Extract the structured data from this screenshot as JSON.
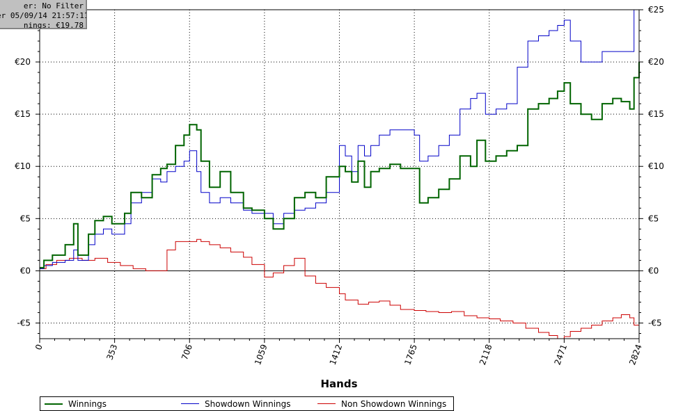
{
  "info_box": {
    "line1": "er: No Filter",
    "line2": "er 05/09/14 21:57:11",
    "line3": "nings: €19.78"
  },
  "colors": {
    "winnings": "#006400",
    "showdown": "#0000c8",
    "non_showdown": "#cc0000",
    "zero_line": "#000000",
    "grid": "#000000"
  },
  "chart_data": {
    "type": "line",
    "xlabel": "Hands",
    "ylabel": "",
    "xlim": [
      0,
      2824
    ],
    "ylim": [
      -6.5,
      25
    ],
    "x_ticks": [
      0,
      353,
      706,
      1059,
      1412,
      1765,
      2118,
      2471,
      2824
    ],
    "y_ticks": [
      -5,
      0,
      5,
      10,
      15,
      20,
      25
    ],
    "y_tick_labels": [
      "-€5",
      "€0",
      "€5",
      "€10",
      "€15",
      "€20",
      "€25"
    ],
    "grid": true,
    "legend_position": "bottom",
    "series": [
      {
        "name": "Winnings",
        "x": [
          0,
          20,
          60,
          120,
          160,
          180,
          230,
          260,
          300,
          340,
          400,
          430,
          480,
          530,
          570,
          600,
          640,
          680,
          706,
          740,
          760,
          800,
          850,
          900,
          960,
          1000,
          1059,
          1100,
          1150,
          1200,
          1250,
          1300,
          1350,
          1412,
          1440,
          1470,
          1500,
          1530,
          1560,
          1600,
          1650,
          1700,
          1765,
          1790,
          1830,
          1880,
          1930,
          1980,
          2030,
          2060,
          2100,
          2150,
          2200,
          2250,
          2300,
          2350,
          2400,
          2440,
          2471,
          2500,
          2550,
          2600,
          2650,
          2700,
          2740,
          2780,
          2800,
          2824
        ],
        "y": [
          0.3,
          1.0,
          1.5,
          2.5,
          4.5,
          1.5,
          3.5,
          4.8,
          5.2,
          4.5,
          5.5,
          7.5,
          7.0,
          9.2,
          9.8,
          10.2,
          12.0,
          13.0,
          14.0,
          13.5,
          10.5,
          8.0,
          9.5,
          7.5,
          6.0,
          5.8,
          5.0,
          4.0,
          5.0,
          7.0,
          7.5,
          7.0,
          9.0,
          10.0,
          9.5,
          8.5,
          10.5,
          8.0,
          9.5,
          9.8,
          10.2,
          9.8,
          9.8,
          6.5,
          7.0,
          7.8,
          8.8,
          11.0,
          10.0,
          12.5,
          10.5,
          11.0,
          11.5,
          12.0,
          15.5,
          16.0,
          16.5,
          17.2,
          18.0,
          16.0,
          15.0,
          14.5,
          16.0,
          16.5,
          16.2,
          15.5,
          18.5,
          20.0
        ]
      },
      {
        "name": "Showdown Winnings",
        "x": [
          0,
          20,
          60,
          120,
          160,
          180,
          230,
          260,
          300,
          340,
          400,
          430,
          480,
          530,
          570,
          600,
          640,
          680,
          706,
          740,
          760,
          800,
          850,
          900,
          960,
          1000,
          1059,
          1100,
          1150,
          1200,
          1250,
          1300,
          1350,
          1412,
          1440,
          1470,
          1500,
          1530,
          1560,
          1600,
          1650,
          1700,
          1765,
          1790,
          1830,
          1880,
          1930,
          1980,
          2030,
          2060,
          2100,
          2150,
          2200,
          2250,
          2300,
          2350,
          2400,
          2440,
          2471,
          2500,
          2550,
          2600,
          2650,
          2700,
          2740,
          2780,
          2800,
          2824
        ],
        "y": [
          0.2,
          0.5,
          0.8,
          1.0,
          2.0,
          1.0,
          2.5,
          3.5,
          4.0,
          3.5,
          4.5,
          6.5,
          7.5,
          8.8,
          8.5,
          9.5,
          10.0,
          10.5,
          11.5,
          9.5,
          7.5,
          6.5,
          7.0,
          6.5,
          5.8,
          5.5,
          5.5,
          4.5,
          5.5,
          5.8,
          6.0,
          6.5,
          7.5,
          12.0,
          11.0,
          9.5,
          12.0,
          11.0,
          12.0,
          13.0,
          13.5,
          13.5,
          13.0,
          10.5,
          11.0,
          12.0,
          13.0,
          15.5,
          16.5,
          17.0,
          15.0,
          15.5,
          16.0,
          19.5,
          22.0,
          22.5,
          23.0,
          23.5,
          24.0,
          22.0,
          20.0,
          20.0,
          21.0,
          21.0,
          21.0,
          21.0,
          25.0,
          25.0
        ]
      },
      {
        "name": "Non Showdown Winnings",
        "x": [
          0,
          30,
          80,
          140,
          200,
          260,
          320,
          380,
          440,
          500,
          560,
          600,
          640,
          700,
          740,
          760,
          800,
          850,
          900,
          960,
          1000,
          1059,
          1100,
          1150,
          1200,
          1250,
          1300,
          1350,
          1412,
          1440,
          1500,
          1550,
          1600,
          1650,
          1700,
          1765,
          1820,
          1880,
          1940,
          2000,
          2060,
          2118,
          2170,
          2230,
          2290,
          2350,
          2400,
          2440,
          2471,
          2500,
          2550,
          2600,
          2650,
          2700,
          2740,
          2780,
          2800,
          2824
        ],
        "y": [
          0.2,
          0.6,
          1.0,
          1.2,
          1.0,
          1.2,
          0.8,
          0.5,
          0.2,
          0.0,
          0.0,
          2.0,
          2.8,
          2.8,
          3.0,
          2.8,
          2.5,
          2.2,
          1.8,
          1.3,
          0.6,
          -0.6,
          -0.2,
          0.5,
          1.2,
          -0.5,
          -1.2,
          -1.6,
          -2.2,
          -2.8,
          -3.2,
          -3.0,
          -2.9,
          -3.3,
          -3.7,
          -3.8,
          -3.9,
          -4.0,
          -3.9,
          -4.3,
          -4.5,
          -4.6,
          -4.8,
          -5.0,
          -5.5,
          -5.9,
          -6.2,
          -6.5,
          -6.3,
          -5.8,
          -5.5,
          -5.2,
          -4.8,
          -4.5,
          -4.2,
          -4.5,
          -5.2,
          -4.9
        ]
      }
    ]
  }
}
